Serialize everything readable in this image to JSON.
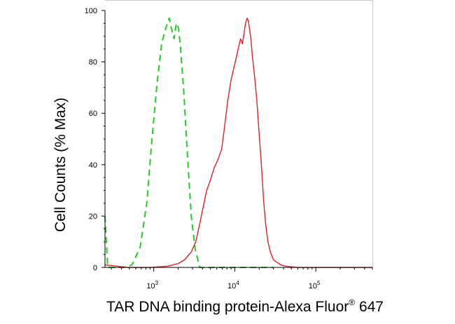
{
  "chart_data": {
    "type": "line",
    "title": "",
    "xlabel": "TAR DNA binding protein-Alexa Fluor",
    "xlabel_superscript": "®",
    "xlabel_suffix": " 647",
    "ylabel": "Cell Counts (% Max)",
    "x_scale": "log",
    "xlim": [
      250,
      500000
    ],
    "ylim": [
      0,
      100
    ],
    "y_ticks": [
      0,
      20,
      40,
      60,
      80,
      100
    ],
    "x_ticks": [
      {
        "value": 1000,
        "base": "10",
        "exp": "3"
      },
      {
        "value": 10000,
        "base": "10",
        "exp": "4"
      },
      {
        "value": 100000,
        "base": "10",
        "exp": "5"
      }
    ],
    "grid": false,
    "legend": "none",
    "series": [
      {
        "color": "#22cc22",
        "style": "dashed",
        "points": [
          [
            250,
            20
          ],
          [
            270,
            0
          ],
          [
            420,
            0
          ],
          [
            540,
            1
          ],
          [
            680,
            8
          ],
          [
            820,
            25
          ],
          [
            950,
            50
          ],
          [
            1100,
            72
          ],
          [
            1250,
            87
          ],
          [
            1400,
            93
          ],
          [
            1550,
            97
          ],
          [
            1650,
            93
          ],
          [
            1780,
            89
          ],
          [
            1900,
            95
          ],
          [
            2020,
            93
          ],
          [
            2150,
            85
          ],
          [
            2350,
            68
          ],
          [
            2600,
            44
          ],
          [
            2900,
            20
          ],
          [
            3250,
            7
          ],
          [
            3700,
            0
          ],
          [
            4200,
            0
          ],
          [
            30000,
            0
          ]
        ]
      },
      {
        "color": "#dd2222",
        "style": "solid",
        "points": [
          [
            250,
            1
          ],
          [
            480,
            0
          ],
          [
            900,
            0
          ],
          [
            1500,
            0.5
          ],
          [
            2000,
            1.5
          ],
          [
            2400,
            3
          ],
          [
            2900,
            6
          ],
          [
            3300,
            10
          ],
          [
            3700,
            17
          ],
          [
            4100,
            24
          ],
          [
            4500,
            30
          ],
          [
            5000,
            34
          ],
          [
            5600,
            39
          ],
          [
            6200,
            42
          ],
          [
            6900,
            46
          ],
          [
            7500,
            55
          ],
          [
            8200,
            65
          ],
          [
            9000,
            73
          ],
          [
            9800,
            78
          ],
          [
            10500,
            82
          ],
          [
            11200,
            86
          ],
          [
            11800,
            89
          ],
          [
            12400,
            87
          ],
          [
            13000,
            91
          ],
          [
            13600,
            95
          ],
          [
            14200,
            97
          ],
          [
            14700,
            96
          ],
          [
            15200,
            93
          ],
          [
            15800,
            89
          ],
          [
            16500,
            82
          ],
          [
            17500,
            75
          ],
          [
            18700,
            65
          ],
          [
            20000,
            52
          ],
          [
            21300,
            40
          ],
          [
            22700,
            26
          ],
          [
            24000,
            17
          ],
          [
            25700,
            10
          ],
          [
            27500,
            6
          ],
          [
            30000,
            3
          ],
          [
            33000,
            2
          ],
          [
            37000,
            1
          ],
          [
            42000,
            0.5
          ],
          [
            60000,
            0
          ],
          [
            500000,
            0
          ]
        ]
      }
    ]
  }
}
